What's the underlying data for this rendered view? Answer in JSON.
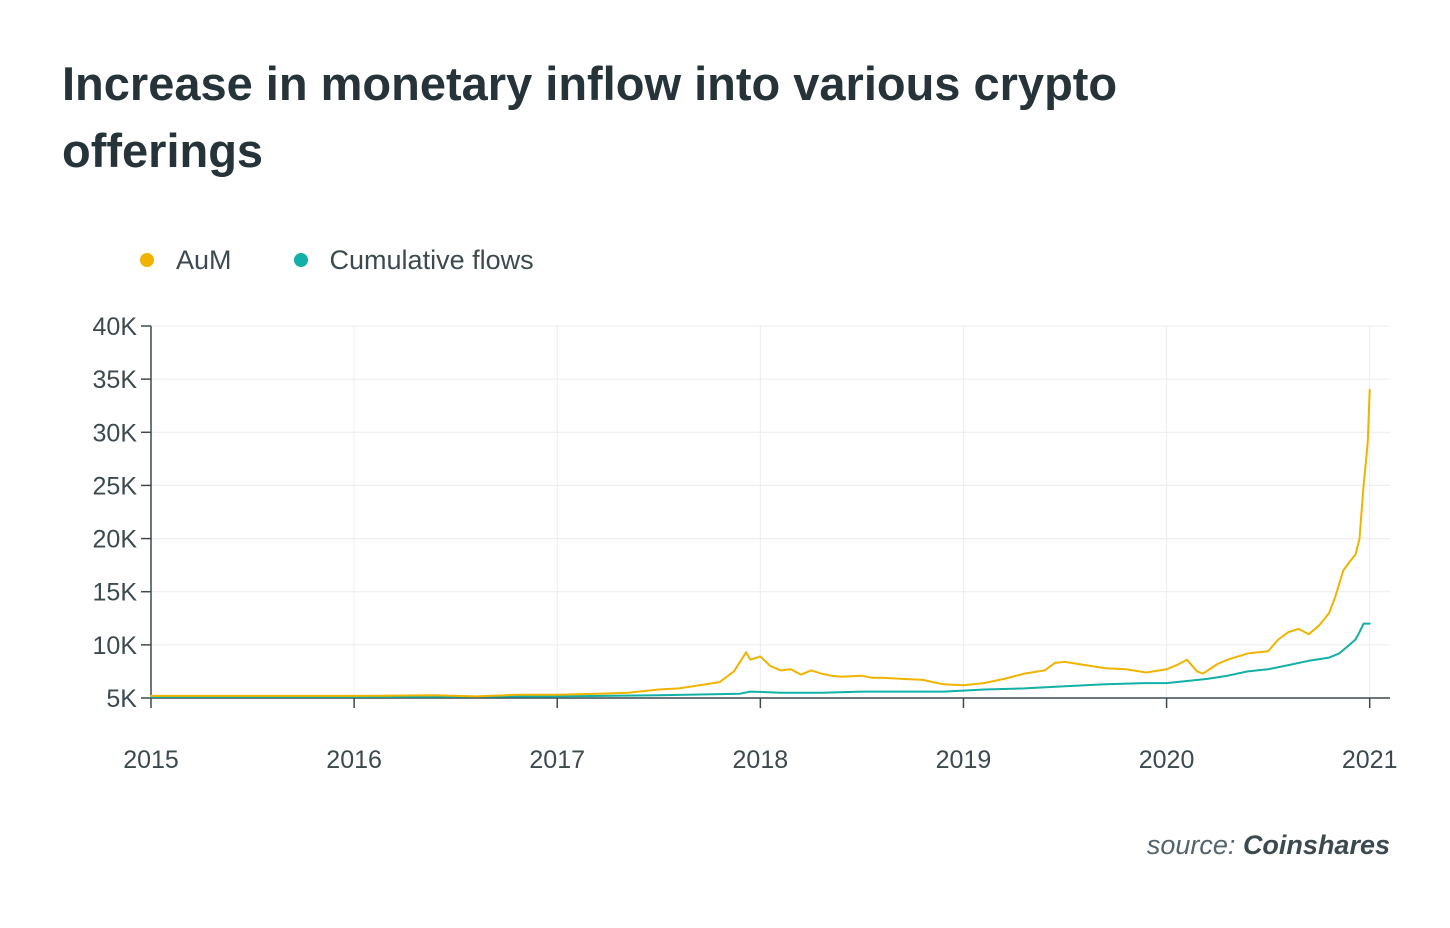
{
  "chart_data": {
    "type": "line",
    "title": "Increase in monetary inflow into various crypto offerings",
    "xlabel": "",
    "ylabel": "",
    "x_ticks": [
      "2015",
      "2016",
      "2017",
      "2018",
      "2019",
      "2020",
      "2021"
    ],
    "y_ticks": [
      "5K",
      "10K",
      "15K",
      "20K",
      "25K",
      "30K",
      "35K",
      "40K"
    ],
    "xlim": [
      2015,
      2021.1
    ],
    "ylim": [
      5000,
      40000
    ],
    "grid": true,
    "legend_position": "top-left",
    "colors": {
      "aum": "#f0b400",
      "flows": "#12b0a6"
    },
    "series": [
      {
        "name": "AuM",
        "key": "aum",
        "x": [
          2015.0,
          2015.5,
          2016.0,
          2016.4,
          2016.6,
          2016.8,
          2017.0,
          2017.2,
          2017.35,
          2017.5,
          2017.6,
          2017.7,
          2017.8,
          2017.87,
          2017.93,
          2017.95,
          2018.0,
          2018.05,
          2018.1,
          2018.15,
          2018.2,
          2018.25,
          2018.3,
          2018.35,
          2018.4,
          2018.5,
          2018.55,
          2018.6,
          2018.7,
          2018.8,
          2018.85,
          2018.9,
          2019.0,
          2019.1,
          2019.2,
          2019.3,
          2019.4,
          2019.45,
          2019.5,
          2019.6,
          2019.7,
          2019.8,
          2019.9,
          2020.0,
          2020.05,
          2020.1,
          2020.15,
          2020.18,
          2020.25,
          2020.3,
          2020.4,
          2020.5,
          2020.55,
          2020.6,
          2020.65,
          2020.7,
          2020.75,
          2020.8,
          2020.83,
          2020.87,
          2020.9,
          2020.93,
          2020.95,
          2020.97,
          2020.99,
          2021.0
        ],
        "values": [
          5200,
          5200,
          5200,
          5250,
          5150,
          5300,
          5300,
          5400,
          5500,
          5800,
          5900,
          6200,
          6500,
          7500,
          9300,
          8600,
          8900,
          8000,
          7600,
          7700,
          7200,
          7600,
          7300,
          7100,
          7000,
          7100,
          6900,
          6900,
          6800,
          6700,
          6500,
          6300,
          6200,
          6400,
          6800,
          7300,
          7600,
          8300,
          8400,
          8100,
          7800,
          7700,
          7400,
          7700,
          8100,
          8600,
          7500,
          7300,
          8200,
          8600,
          9200,
          9400,
          10500,
          11200,
          11500,
          11000,
          11800,
          13000,
          14500,
          17000,
          17800,
          18500,
          20000,
          25000,
          29000,
          34000
        ]
      },
      {
        "name": "Cumulative flows",
        "key": "flows",
        "x": [
          2015.0,
          2016.0,
          2017.0,
          2017.5,
          2017.9,
          2017.95,
          2018.1,
          2018.3,
          2018.5,
          2018.7,
          2018.9,
          2019.0,
          2019.1,
          2019.3,
          2019.5,
          2019.7,
          2019.9,
          2020.0,
          2020.1,
          2020.2,
          2020.3,
          2020.4,
          2020.5,
          2020.6,
          2020.7,
          2020.8,
          2020.85,
          2020.9,
          2020.93,
          2020.95,
          2020.97,
          2021.0
        ],
        "values": [
          5100,
          5100,
          5150,
          5250,
          5400,
          5600,
          5500,
          5500,
          5600,
          5600,
          5600,
          5700,
          5800,
          5900,
          6100,
          6300,
          6400,
          6400,
          6600,
          6800,
          7100,
          7500,
          7700,
          8100,
          8500,
          8800,
          9200,
          10000,
          10500,
          11200,
          12000,
          12000
        ]
      }
    ]
  },
  "source": {
    "prefix": "source:",
    "name": "Coinshares"
  }
}
